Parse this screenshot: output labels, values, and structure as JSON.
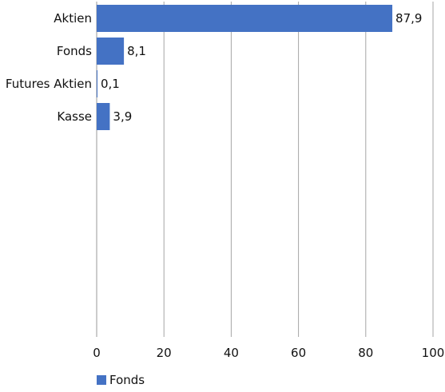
{
  "chart_data": {
    "type": "bar",
    "orientation": "horizontal",
    "categories": [
      "Aktien",
      "Fonds",
      "Futures Aktien",
      "Kasse"
    ],
    "series": [
      {
        "name": "Fonds",
        "values": [
          87.9,
          8.1,
          0.1,
          3.9
        ],
        "color": "#4472c4"
      }
    ],
    "data_labels": [
      "87,9",
      "8,1",
      "0,1",
      "3,9"
    ],
    "x_ticks": [
      0,
      20,
      40,
      60,
      80,
      100
    ],
    "x_tick_labels": [
      "0",
      "20",
      "40",
      "60",
      "80",
      "100"
    ],
    "xlim": [
      0,
      100
    ],
    "grid": true,
    "legend_position": "bottom-left",
    "title": "",
    "xlabel": "",
    "ylabel": ""
  }
}
